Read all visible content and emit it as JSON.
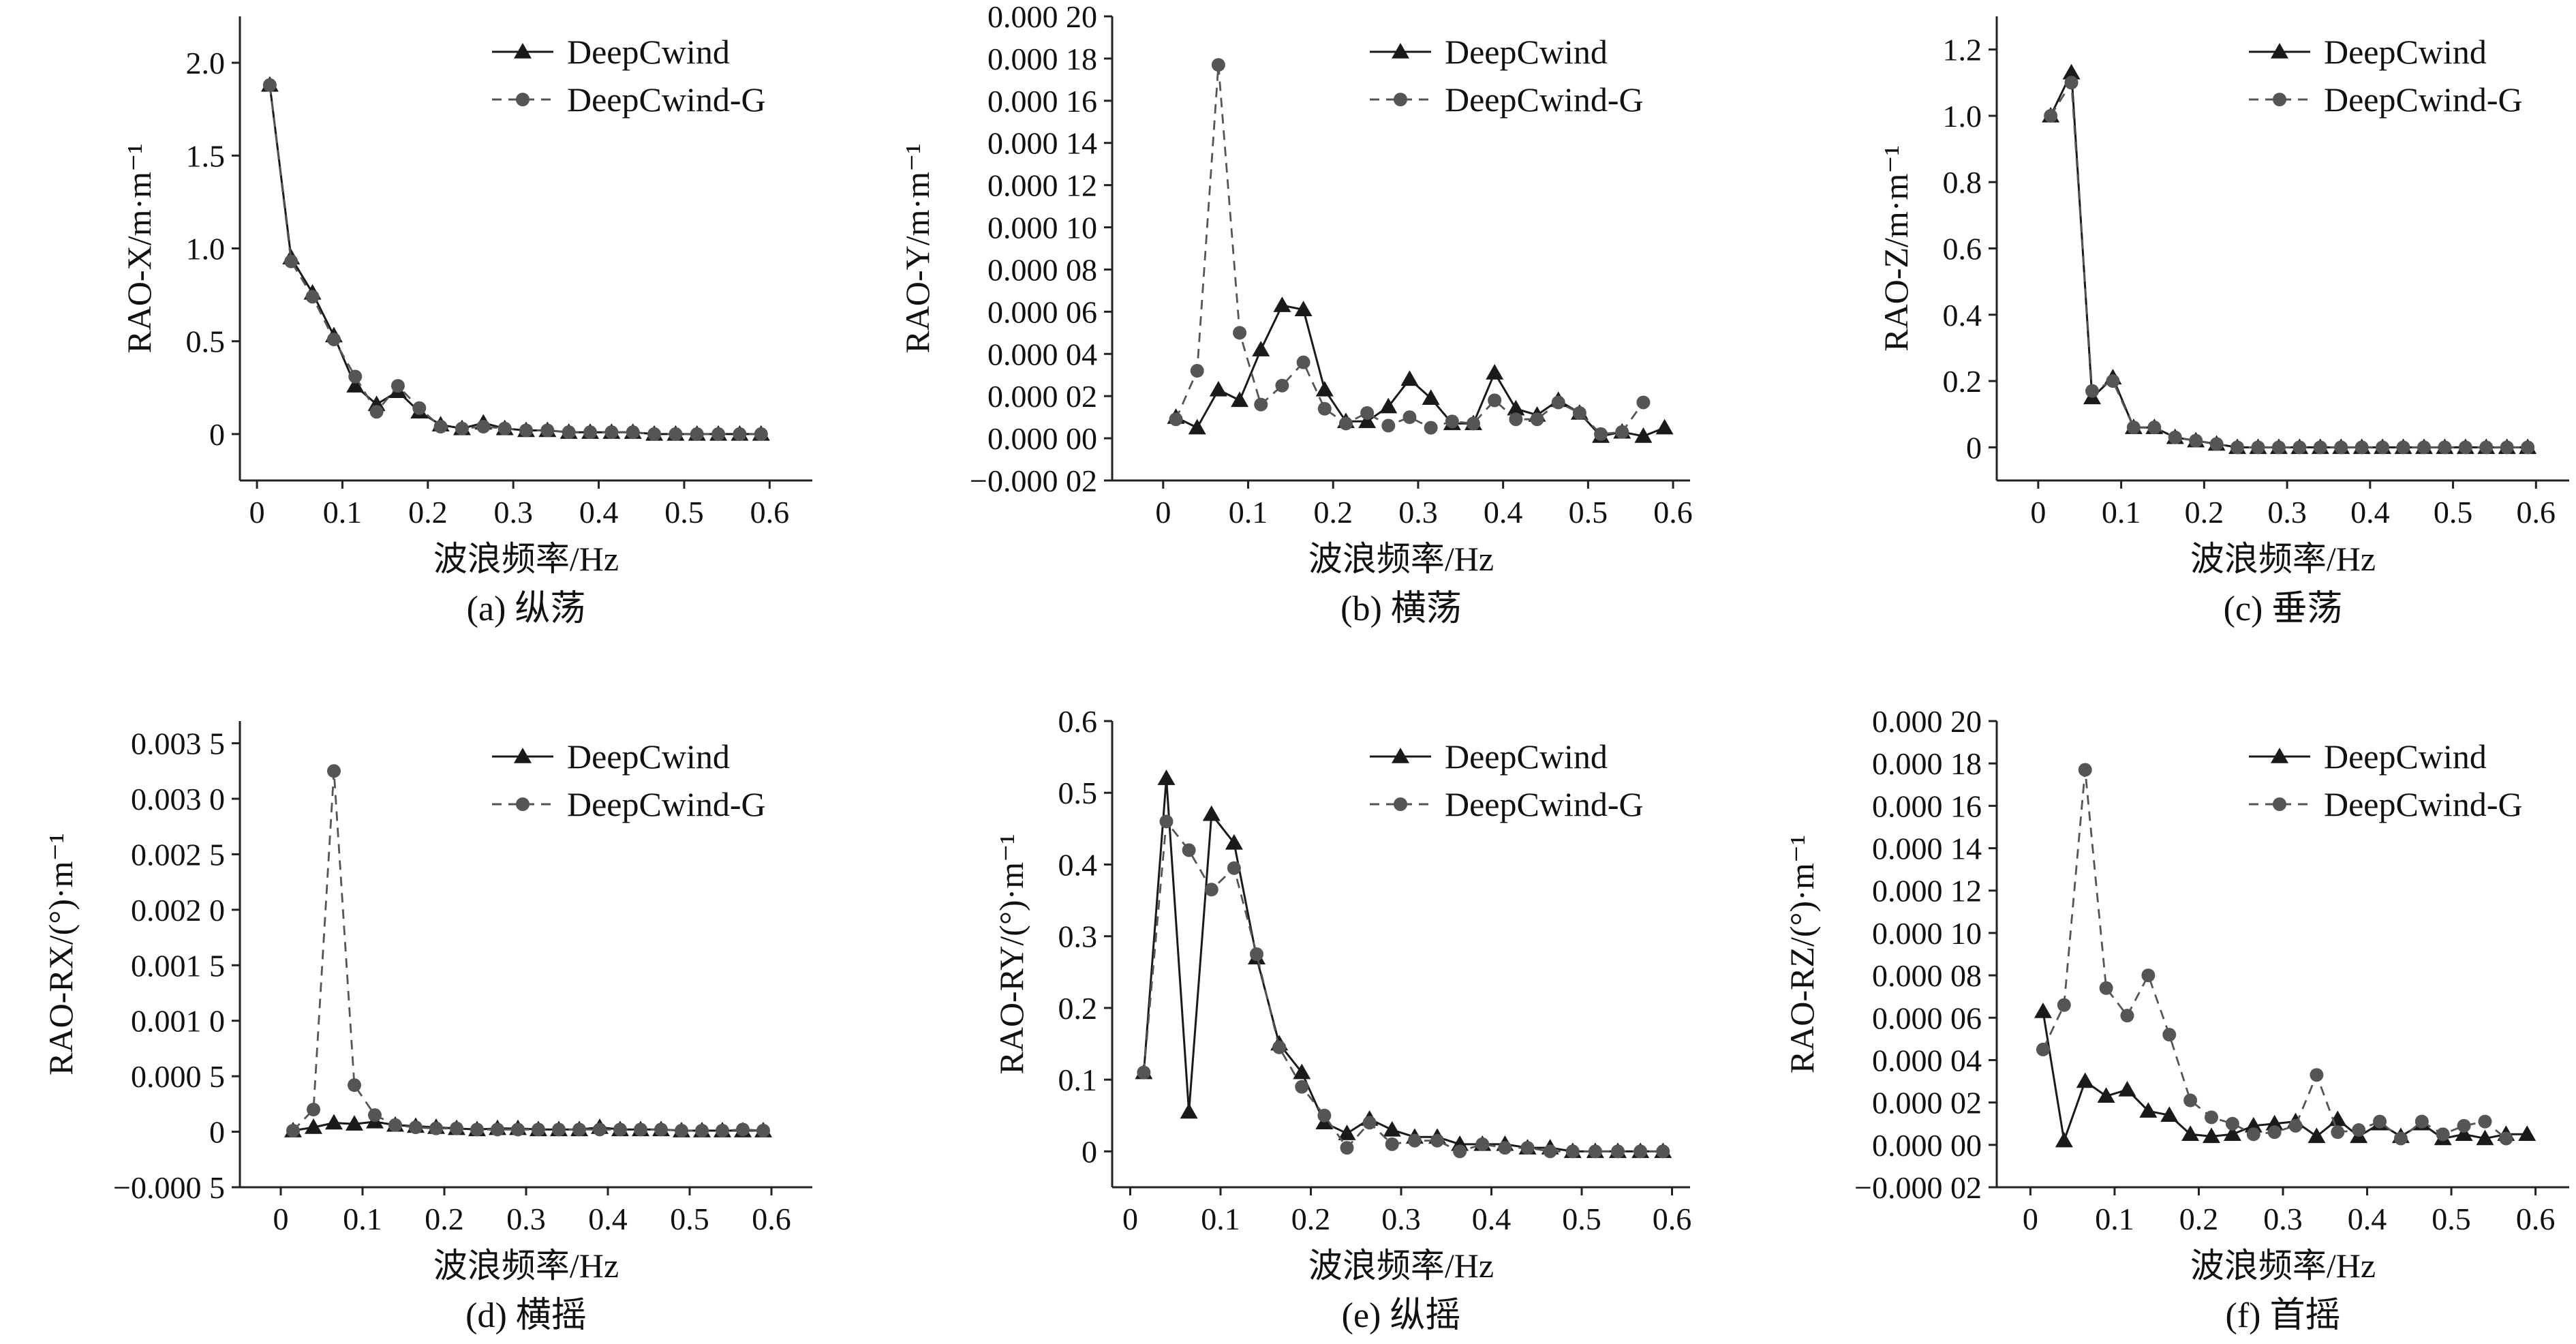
{
  "figure_colors": {
    "deepcwind": "#1a1a1a",
    "deepcwind_g": "#555555",
    "axis": "#222222"
  },
  "chart_data": [
    {
      "type": "line",
      "id": "a",
      "caption": "(a) 纵荡",
      "xlabel": "波浪频率/Hz",
      "ylabel": "RAO-X/m·m⁻¹",
      "xlim": [
        -0.02,
        0.65
      ],
      "ylim": [
        -0.25,
        2.25
      ],
      "xticks": [
        0,
        0.1,
        0.2,
        0.3,
        0.4,
        0.5,
        0.6
      ],
      "xtick_labels": [
        "0",
        "0.1",
        "0.2",
        "0.3",
        "0.4",
        "0.5",
        "0.6"
      ],
      "yticks": [
        0,
        0.5,
        1.0,
        1.5,
        2.0
      ],
      "ytick_labels": [
        "0",
        "0.5",
        "1.0",
        "1.5",
        "2.0"
      ],
      "legend_position": "top-right",
      "series": [
        {
          "name": "DeepCwind",
          "marker": "triangle",
          "dash": false,
          "x": [
            0.015,
            0.04,
            0.065,
            0.09,
            0.115,
            0.14,
            0.165,
            0.19,
            0.215,
            0.24,
            0.265,
            0.29,
            0.315,
            0.34,
            0.365,
            0.39,
            0.415,
            0.44,
            0.465,
            0.49,
            0.515,
            0.54,
            0.565,
            0.59
          ],
          "y": [
            1.88,
            0.95,
            0.76,
            0.53,
            0.26,
            0.16,
            0.23,
            0.12,
            0.05,
            0.03,
            0.06,
            0.03,
            0.02,
            0.02,
            0.01,
            0.01,
            0.01,
            0.01,
            0.0,
            0.0,
            0.0,
            0.0,
            0.0,
            0.0
          ]
        },
        {
          "name": "DeepCwind-G",
          "marker": "circle",
          "dash": true,
          "x": [
            0.015,
            0.04,
            0.065,
            0.09,
            0.115,
            0.14,
            0.165,
            0.19,
            0.215,
            0.24,
            0.265,
            0.29,
            0.315,
            0.34,
            0.365,
            0.39,
            0.415,
            0.44,
            0.465,
            0.49,
            0.515,
            0.54,
            0.565,
            0.59
          ],
          "y": [
            1.88,
            0.93,
            0.74,
            0.51,
            0.31,
            0.12,
            0.26,
            0.14,
            0.04,
            0.03,
            0.04,
            0.03,
            0.02,
            0.02,
            0.01,
            0.01,
            0.01,
            0.01,
            0.0,
            0.0,
            0.0,
            0.0,
            0.0,
            0.0
          ]
        }
      ]
    },
    {
      "type": "line",
      "id": "b",
      "caption": "(b) 横荡",
      "xlabel": "波浪频率/Hz",
      "ylabel": "RAO-Y/m·m⁻¹",
      "xlim": [
        -0.06,
        0.62
      ],
      "ylim": [
        -2e-05,
        0.0002
      ],
      "xticks": [
        0,
        0.1,
        0.2,
        0.3,
        0.4,
        0.5,
        0.6
      ],
      "xtick_labels": [
        "0",
        "0.1",
        "0.2",
        "0.3",
        "0.4",
        "0.5",
        "0.6"
      ],
      "yticks": [
        -2e-05,
        0,
        2e-05,
        4e-05,
        6e-05,
        8e-05,
        0.0001,
        0.00012,
        0.00014,
        0.00016,
        0.00018,
        0.0002
      ],
      "ytick_labels": [
        "−0.000 02",
        "0.000 00",
        "0.000 02",
        "0.000 04",
        "0.000 06",
        "0.000 08",
        "0.000 10",
        "0.000 12",
        "0.000 14",
        "0.000 16",
        "0.000 18",
        "0.000 20"
      ],
      "legend_position": "top-right",
      "series": [
        {
          "name": "DeepCwind",
          "marker": "triangle",
          "dash": false,
          "x": [
            0.015,
            0.04,
            0.065,
            0.09,
            0.115,
            0.14,
            0.165,
            0.19,
            0.215,
            0.24,
            0.265,
            0.29,
            0.315,
            0.34,
            0.365,
            0.39,
            0.415,
            0.44,
            0.465,
            0.49,
            0.515,
            0.54,
            0.565,
            0.59
          ],
          "y": [
            1e-05,
            5e-06,
            2.3e-05,
            1.8e-05,
            4.2e-05,
            6.3e-05,
            6.1e-05,
            2.3e-05,
            8e-06,
            8e-06,
            1.5e-05,
            2.8e-05,
            1.9e-05,
            7e-06,
            7e-06,
            3.1e-05,
            1.4e-05,
            1.1e-05,
            1.8e-05,
            1.2e-05,
            1e-06,
            3e-06,
            1e-06,
            5e-06
          ]
        },
        {
          "name": "DeepCwind-G",
          "marker": "circle",
          "dash": true,
          "x": [
            0.015,
            0.04,
            0.065,
            0.09,
            0.115,
            0.14,
            0.165,
            0.19,
            0.215,
            0.24,
            0.265,
            0.29,
            0.315,
            0.34,
            0.365,
            0.39,
            0.415,
            0.44,
            0.465,
            0.49,
            0.515,
            0.54,
            0.565
          ],
          "y": [
            9e-06,
            3.2e-05,
            0.000177,
            5e-05,
            1.6e-05,
            2.5e-05,
            3.6e-05,
            1.4e-05,
            7e-06,
            1.2e-05,
            6e-06,
            1e-05,
            5e-06,
            8e-06,
            7e-06,
            1.8e-05,
            9e-06,
            9e-06,
            1.7e-05,
            1.2e-05,
            2e-06,
            3e-06,
            1.7e-05
          ]
        }
      ]
    },
    {
      "type": "line",
      "id": "c",
      "caption": "(c) 垂荡",
      "xlabel": "波浪频率/Hz",
      "ylabel": "RAO-Z/m·m⁻¹",
      "xlim": [
        -0.05,
        0.64
      ],
      "ylim": [
        -0.1,
        1.3
      ],
      "xticks": [
        0,
        0.1,
        0.2,
        0.3,
        0.4,
        0.5,
        0.6
      ],
      "xtick_labels": [
        "0",
        "0.1",
        "0.2",
        "0.3",
        "0.4",
        "0.5",
        "0.6"
      ],
      "yticks": [
        0,
        0.2,
        0.4,
        0.6,
        0.8,
        1.0,
        1.2
      ],
      "ytick_labels": [
        "0",
        "0.2",
        "0.4",
        "0.6",
        "0.8",
        "1.0",
        "1.2"
      ],
      "legend_position": "top-right",
      "series": [
        {
          "name": "DeepCwind",
          "marker": "triangle",
          "dash": false,
          "x": [
            0.015,
            0.04,
            0.065,
            0.09,
            0.115,
            0.14,
            0.165,
            0.19,
            0.215,
            0.24,
            0.265,
            0.29,
            0.315,
            0.34,
            0.365,
            0.39,
            0.415,
            0.44,
            0.465,
            0.49,
            0.515,
            0.54,
            0.565,
            0.59
          ],
          "y": [
            1.0,
            1.13,
            0.15,
            0.21,
            0.06,
            0.06,
            0.03,
            0.02,
            0.01,
            0.0,
            0.0,
            0.0,
            0.0,
            0.0,
            0.0,
            0.0,
            0.0,
            0.0,
            0.0,
            0.0,
            0.0,
            0.0,
            0.0,
            0.0
          ]
        },
        {
          "name": "DeepCwind-G",
          "marker": "circle",
          "dash": true,
          "x": [
            0.015,
            0.04,
            0.065,
            0.09,
            0.115,
            0.14,
            0.165,
            0.19,
            0.215,
            0.24,
            0.265,
            0.29,
            0.315,
            0.34,
            0.365,
            0.39,
            0.415,
            0.44,
            0.465,
            0.49,
            0.515,
            0.54,
            0.565,
            0.59
          ],
          "y": [
            1.0,
            1.1,
            0.17,
            0.2,
            0.06,
            0.06,
            0.03,
            0.02,
            0.01,
            0.0,
            0.0,
            0.0,
            0.0,
            0.0,
            0.0,
            0.0,
            0.0,
            0.0,
            0.0,
            0.0,
            0.0,
            0.0,
            0.0,
            0.0
          ]
        }
      ]
    },
    {
      "type": "line",
      "id": "d",
      "caption": "(d) 横摇",
      "xlabel": "波浪频率/Hz",
      "ylabel": "RAO-RX/(°)·m⁻¹",
      "xlim": [
        -0.05,
        0.65
      ],
      "ylim": [
        -0.0005,
        0.0037
      ],
      "xticks": [
        0,
        0.1,
        0.2,
        0.3,
        0.4,
        0.5,
        0.6
      ],
      "xtick_labels": [
        "0",
        "0.1",
        "0.2",
        "0.3",
        "0.4",
        "0.5",
        "0.6"
      ],
      "yticks": [
        -0.0005,
        0,
        0.0005,
        0.001,
        0.0015,
        0.002,
        0.0025,
        0.003,
        0.0035
      ],
      "ytick_labels": [
        "−0.000 5",
        "0",
        "0.000 5",
        "0.001 0",
        "0.001 5",
        "0.002 0",
        "0.002 5",
        "0.003 0",
        "0.003 5"
      ],
      "legend_position": "top-right",
      "series": [
        {
          "name": "DeepCwind",
          "marker": "triangle",
          "dash": false,
          "x": [
            0.015,
            0.04,
            0.065,
            0.09,
            0.115,
            0.14,
            0.165,
            0.19,
            0.215,
            0.24,
            0.265,
            0.29,
            0.315,
            0.34,
            0.365,
            0.39,
            0.415,
            0.44,
            0.465,
            0.49,
            0.515,
            0.54,
            0.565,
            0.59
          ],
          "y": [
            1e-05,
            4e-05,
            8e-05,
            7e-05,
            9e-05,
            6e-05,
            5e-05,
            4e-05,
            3e-05,
            2e-05,
            3e-05,
            3e-05,
            2e-05,
            2e-05,
            2e-05,
            4e-05,
            2e-05,
            2e-05,
            2e-05,
            1e-05,
            1e-05,
            1e-05,
            1e-05,
            1e-05
          ]
        },
        {
          "name": "DeepCwind-G",
          "marker": "circle",
          "dash": true,
          "x": [
            0.015,
            0.04,
            0.065,
            0.09,
            0.115,
            0.14,
            0.165,
            0.19,
            0.215,
            0.24,
            0.265,
            0.29,
            0.315,
            0.34,
            0.365,
            0.39,
            0.415,
            0.44,
            0.465,
            0.49,
            0.515,
            0.54,
            0.565,
            0.59
          ],
          "y": [
            1e-05,
            0.0002,
            0.00325,
            0.00042,
            0.00015,
            6e-05,
            4e-05,
            3e-05,
            3e-05,
            2e-05,
            2e-05,
            2e-05,
            2e-05,
            2e-05,
            2e-05,
            2e-05,
            2e-05,
            2e-05,
            2e-05,
            1e-05,
            1e-05,
            1e-05,
            2e-05,
            1e-05
          ]
        }
      ]
    },
    {
      "type": "line",
      "id": "e",
      "caption": "(e) 纵摇",
      "xlabel": "波浪频率/Hz",
      "ylabel": "RAO-RY/(°)·m⁻¹",
      "xlim": [
        -0.02,
        0.62
      ],
      "ylim": [
        -0.05,
        0.6
      ],
      "xticks": [
        0,
        0.1,
        0.2,
        0.3,
        0.4,
        0.5,
        0.6
      ],
      "xtick_labels": [
        "0",
        "0.1",
        "0.2",
        "0.3",
        "0.4",
        "0.5",
        "0.6"
      ],
      "yticks": [
        0,
        0.1,
        0.2,
        0.3,
        0.4,
        0.5,
        0.6
      ],
      "ytick_labels": [
        "0",
        "0.1",
        "0.2",
        "0.3",
        "0.4",
        "0.5",
        "0.6"
      ],
      "legend_position": "top-right",
      "series": [
        {
          "name": "DeepCwind",
          "marker": "triangle",
          "dash": false,
          "x": [
            0.015,
            0.04,
            0.065,
            0.09,
            0.115,
            0.14,
            0.165,
            0.19,
            0.215,
            0.24,
            0.265,
            0.29,
            0.315,
            0.34,
            0.365,
            0.39,
            0.415,
            0.44,
            0.465,
            0.49,
            0.515,
            0.54,
            0.565,
            0.59
          ],
          "y": [
            0.11,
            0.52,
            0.055,
            0.47,
            0.43,
            0.27,
            0.15,
            0.11,
            0.04,
            0.025,
            0.045,
            0.03,
            0.02,
            0.02,
            0.01,
            0.01,
            0.01,
            0.005,
            0.005,
            0.0,
            0.0,
            0.0,
            0.0,
            0.0
          ]
        },
        {
          "name": "DeepCwind-G",
          "marker": "circle",
          "dash": true,
          "x": [
            0.015,
            0.04,
            0.065,
            0.09,
            0.115,
            0.14,
            0.165,
            0.19,
            0.215,
            0.24,
            0.265,
            0.29,
            0.315,
            0.34,
            0.365,
            0.39,
            0.415,
            0.44,
            0.465,
            0.49,
            0.515,
            0.54,
            0.565,
            0.59
          ],
          "y": [
            0.11,
            0.46,
            0.42,
            0.365,
            0.395,
            0.275,
            0.145,
            0.09,
            0.05,
            0.005,
            0.04,
            0.01,
            0.015,
            0.015,
            0.0,
            0.01,
            0.005,
            0.005,
            0.0,
            0.0,
            0.0,
            0.0,
            0.0,
            0.0
          ]
        }
      ]
    },
    {
      "type": "line",
      "id": "f",
      "caption": "(f) 首摇",
      "xlabel": "波浪频率/Hz",
      "ylabel": "RAO-RZ/(°)·m⁻¹",
      "xlim": [
        -0.04,
        0.64
      ],
      "ylim": [
        -2e-05,
        0.0002
      ],
      "xticks": [
        0,
        0.1,
        0.2,
        0.3,
        0.4,
        0.5,
        0.6
      ],
      "xtick_labels": [
        "0",
        "0.1",
        "0.2",
        "0.3",
        "0.4",
        "0.5",
        "0.6"
      ],
      "yticks": [
        -2e-05,
        0,
        2e-05,
        4e-05,
        6e-05,
        8e-05,
        0.0001,
        0.00012,
        0.00014,
        0.00016,
        0.00018,
        0.0002
      ],
      "ytick_labels": [
        "−0.000 02",
        "0.000 00",
        "0.000 02",
        "0.000 04",
        "0.000 06",
        "0.000 08",
        "0.000 10",
        "0.000 12",
        "0.000 14",
        "0.000 16",
        "0.000 18",
        "0.000 20"
      ],
      "legend_position": "top-right",
      "series": [
        {
          "name": "DeepCwind",
          "marker": "triangle",
          "dash": false,
          "x": [
            0.015,
            0.04,
            0.065,
            0.09,
            0.115,
            0.14,
            0.165,
            0.19,
            0.215,
            0.24,
            0.265,
            0.29,
            0.315,
            0.34,
            0.365,
            0.39,
            0.415,
            0.44,
            0.465,
            0.49,
            0.515,
            0.54,
            0.565,
            0.59
          ],
          "y": [
            6.3e-05,
            2e-06,
            3e-05,
            2.3e-05,
            2.6e-05,
            1.6e-05,
            1.4e-05,
            5e-06,
            4e-06,
            5e-06,
            9e-06,
            1e-05,
            1.1e-05,
            4e-06,
            1.2e-05,
            4e-06,
            1e-05,
            4e-06,
            1e-05,
            3e-06,
            5e-06,
            3e-06,
            5e-06,
            5e-06
          ]
        },
        {
          "name": "DeepCwind-G",
          "marker": "circle",
          "dash": true,
          "x": [
            0.015,
            0.04,
            0.065,
            0.09,
            0.115,
            0.14,
            0.165,
            0.19,
            0.215,
            0.24,
            0.265,
            0.29,
            0.315,
            0.34,
            0.365,
            0.39,
            0.415,
            0.44,
            0.465,
            0.49,
            0.515,
            0.54,
            0.565
          ],
          "y": [
            4.5e-05,
            6.6e-05,
            0.000177,
            7.4e-05,
            6.1e-05,
            8e-05,
            5.2e-05,
            2.1e-05,
            1.3e-05,
            1e-05,
            5e-06,
            6e-06,
            9e-06,
            3.3e-05,
            6e-06,
            7e-06,
            1.1e-05,
            3e-06,
            1.1e-05,
            5e-06,
            9e-06,
            1.1e-05,
            3e-06
          ]
        }
      ]
    }
  ]
}
